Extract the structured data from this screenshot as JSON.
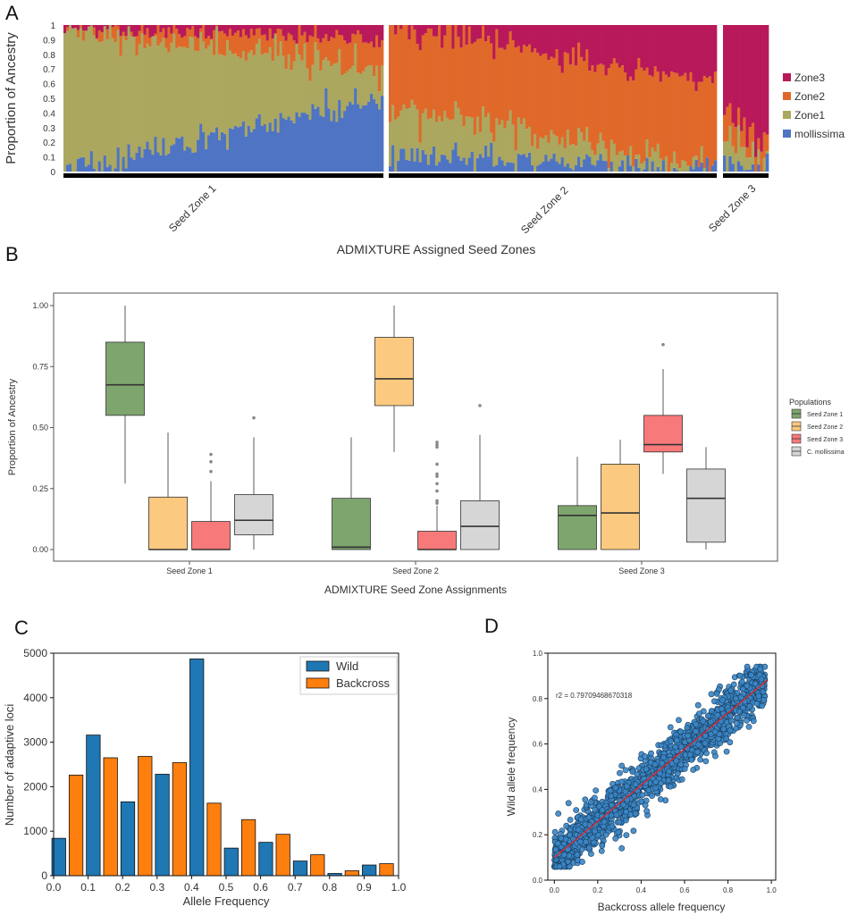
{
  "panels": {
    "a": "A",
    "b": "B",
    "c": "C",
    "d": "D"
  },
  "chart_data": [
    {
      "type": "bar",
      "subtype": "stacked-admixture",
      "panel": "A",
      "title": "",
      "xlabel": "ADMIXTURE Assigned Seed Zones",
      "ylabel": "Proportion of Ancestry",
      "ylim": [
        0,
        1
      ],
      "yticks": [
        "0",
        "0.1",
        "0.2",
        "0.3",
        "0.4",
        "0.5",
        "0.6",
        "0.7",
        "0.8",
        "0.9",
        "1"
      ],
      "groups": [
        {
          "label": "Seed Zone 1",
          "n": 120,
          "start": {
            "mollissima": 0.02,
            "Zone1": 0.96,
            "Zone2": 0.01,
            "Zone3": 0.01
          },
          "end": {
            "mollissima": 0.5,
            "Zone1": 0.2,
            "Zone2": 0.2,
            "Zone3": 0.1
          }
        },
        {
          "label": "Seed Zone 2",
          "n": 120,
          "start": {
            "mollissima": 0.12,
            "Zone1": 0.33,
            "Zone2": 0.55,
            "Zone3": 0.0
          },
          "end": {
            "mollissima": 0.0,
            "Zone1": 0.0,
            "Zone2": 0.6,
            "Zone3": 0.4
          }
        },
        {
          "label": "Seed Zone 3",
          "n": 16,
          "start": {
            "mollissima": 0.05,
            "Zone1": 0.2,
            "Zone2": 0.2,
            "Zone3": 0.55
          },
          "end": {
            "mollissima": 0.05,
            "Zone1": 0.05,
            "Zone2": 0.1,
            "Zone3": 0.8
          }
        }
      ],
      "legend": [
        {
          "name": "Zone3",
          "color": "#b8195a"
        },
        {
          "name": "Zone2",
          "color": "#e0692a"
        },
        {
          "name": "Zone1",
          "color": "#aba75f"
        },
        {
          "name": "mollissima",
          "color": "#4f74c4"
        }
      ],
      "legend_position": "right"
    },
    {
      "type": "box",
      "panel": "B",
      "xlabel": "ADMIXTURE Seed Zone Assignments",
      "ylabel": "Proportion of Ancestry",
      "ylim": [
        0,
        1.05
      ],
      "yticks": [
        "0.00",
        "0.25",
        "0.50",
        "0.75",
        "1.00"
      ],
      "legend_title": "Populations",
      "categories": [
        "Seed Zone 1",
        "Seed Zone 2",
        "Seed Zone 3"
      ],
      "series": [
        {
          "name": "Seed Zone 1",
          "color": "#7fa56f",
          "boxes": [
            {
              "q1": 0.55,
              "median": 0.675,
              "q3": 0.85,
              "whislo": 0.27,
              "whishi": 1.0,
              "fliers": []
            },
            {
              "q1": 0.0,
              "median": 0.01,
              "q3": 0.21,
              "whislo": 0.0,
              "whishi": 0.46,
              "fliers": []
            },
            {
              "q1": 0.0,
              "median": 0.14,
              "q3": 0.18,
              "whislo": 0.0,
              "whishi": 0.38,
              "fliers": []
            }
          ]
        },
        {
          "name": "Seed Zone 2",
          "color": "#fbc97f",
          "boxes": [
            {
              "q1": 0.0,
              "median": 0.0,
              "q3": 0.215,
              "whislo": 0.0,
              "whishi": 0.48,
              "fliers": []
            },
            {
              "q1": 0.59,
              "median": 0.7,
              "q3": 0.87,
              "whislo": 0.4,
              "whishi": 1.0,
              "fliers": []
            },
            {
              "q1": 0.0,
              "median": 0.15,
              "q3": 0.35,
              "whislo": 0.0,
              "whishi": 0.45,
              "fliers": []
            }
          ]
        },
        {
          "name": "Seed Zone 3",
          "color": "#f7797a",
          "boxes": [
            {
              "q1": 0.0,
              "median": 0.0,
              "q3": 0.115,
              "whislo": 0.0,
              "whishi": 0.28,
              "fliers": [
                0.32,
                0.36,
                0.39
              ]
            },
            {
              "q1": 0.0,
              "median": 0.0,
              "q3": 0.075,
              "whislo": 0.0,
              "whishi": 0.18,
              "fliers": [
                0.19,
                0.2,
                0.24,
                0.27,
                0.3,
                0.31,
                0.35,
                0.42,
                0.43,
                0.44
              ]
            },
            {
              "q1": 0.4,
              "median": 0.43,
              "q3": 0.55,
              "whislo": 0.31,
              "whishi": 0.74,
              "fliers": [
                0.84
              ]
            }
          ]
        },
        {
          "name": "C. mollissima",
          "color": "#d6d6d6",
          "boxes": [
            {
              "q1": 0.06,
              "median": 0.12,
              "q3": 0.225,
              "whislo": 0.0,
              "whishi": 0.46,
              "fliers": [
                0.54
              ]
            },
            {
              "q1": 0.0,
              "median": 0.095,
              "q3": 0.2,
              "whislo": 0.0,
              "whishi": 0.47,
              "fliers": [
                0.59
              ]
            },
            {
              "q1": 0.03,
              "median": 0.21,
              "q3": 0.33,
              "whislo": 0.0,
              "whishi": 0.42,
              "fliers": []
            }
          ]
        }
      ]
    },
    {
      "type": "bar",
      "panel": "C",
      "xlabel": "Allele Frequency",
      "ylabel": "Number of adaptive loci",
      "ylim": [
        0,
        5000
      ],
      "xlim": [
        0,
        1
      ],
      "xticks": [
        "0.0",
        "0.1",
        "0.2",
        "0.3",
        "0.4",
        "0.5",
        "0.6",
        "0.7",
        "0.8",
        "0.9",
        "1.0"
      ],
      "yticks": [
        "0",
        "1000",
        "2000",
        "3000",
        "4000",
        "5000"
      ],
      "bin_centers": [
        0.05,
        0.15,
        0.25,
        0.35,
        0.45,
        0.55,
        0.65,
        0.75,
        0.85,
        0.95
      ],
      "series": [
        {
          "name": "Wild",
          "color": "#1f77b4",
          "values": [
            840,
            3160,
            1660,
            2280,
            4870,
            620,
            750,
            330,
            50,
            240
          ]
        },
        {
          "name": "Backcross",
          "color": "#ff7f0e",
          "values": [
            2260,
            2650,
            2680,
            2540,
            1630,
            1260,
            930,
            470,
            110,
            270
          ]
        }
      ],
      "legend_position": "top-right"
    },
    {
      "type": "scatter",
      "panel": "D",
      "xlabel": "Backcross allele frequency",
      "ylabel": "Wild allele frequency",
      "xlim": [
        -0.03,
        1.02
      ],
      "ylim": [
        0.0,
        1.0
      ],
      "xticks": [
        "0.0",
        "0.2",
        "0.4",
        "0.6",
        "0.8",
        "1.0"
      ],
      "yticks": [
        "0.0",
        "0.2",
        "0.4",
        "0.6",
        "0.8",
        "1.0"
      ],
      "annotation": "r2 = 0.79709468670318",
      "fit_line": {
        "x0": 0.0,
        "y0": 0.1,
        "x1": 0.98,
        "y1": 0.88,
        "color": "#e0262a"
      },
      "point_color": "#3a86c6",
      "n_points_approx": 1500
    }
  ]
}
